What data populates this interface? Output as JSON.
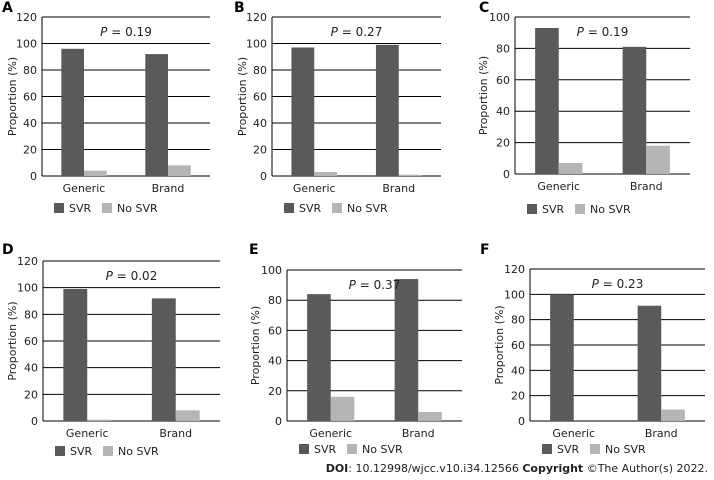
{
  "footer": {
    "doi_label": "DOI",
    "doi_value": ": 10.12998/wjcc.v10.i34.12566",
    "copyright_label": "Copyright",
    "copyright_value": " ©The Author(s) 2022."
  },
  "colors": {
    "svr": "#5a5a5a",
    "no_svr": "#b5b5b5",
    "grid": "#000000",
    "text": "#222222"
  },
  "chart_data": [
    {
      "panel": "A",
      "type": "bar",
      "pvalue": "0.19",
      "categories": [
        "Generic",
        "Brand"
      ],
      "series": [
        {
          "name": "SVR",
          "values": [
            96,
            92
          ]
        },
        {
          "name": "No SVR",
          "values": [
            4,
            8
          ]
        }
      ],
      "ylabel": "Proportion (%)",
      "ylim": [
        0,
        120
      ],
      "yticks": [
        0,
        20,
        40,
        60,
        80,
        100,
        120
      ],
      "legend": "bottom"
    },
    {
      "panel": "B",
      "type": "bar",
      "pvalue": "0.27",
      "categories": [
        "Generic",
        "Brand"
      ],
      "series": [
        {
          "name": "SVR",
          "values": [
            97,
            99
          ]
        },
        {
          "name": "No SVR",
          "values": [
            3,
            1
          ]
        }
      ],
      "ylabel": "Proportion (%)",
      "ylim": [
        0,
        120
      ],
      "yticks": [
        0,
        20,
        40,
        60,
        80,
        100,
        120
      ],
      "legend": "bottom"
    },
    {
      "panel": "C",
      "type": "bar",
      "pvalue": "0.19",
      "categories": [
        "Generic",
        "Brand"
      ],
      "series": [
        {
          "name": "SVR",
          "values": [
            93,
            81
          ]
        },
        {
          "name": "No SVR",
          "values": [
            7,
            18
          ]
        }
      ],
      "ylabel": "Proportion (%)",
      "ylim": [
        0,
        100
      ],
      "yticks": [
        0,
        20,
        40,
        60,
        80,
        100
      ],
      "legend": "bottom"
    },
    {
      "panel": "D",
      "type": "bar",
      "pvalue": "0.02",
      "categories": [
        "Generic",
        "Brand"
      ],
      "series": [
        {
          "name": "SVR",
          "values": [
            99,
            92
          ]
        },
        {
          "name": "No SVR",
          "values": [
            1,
            8
          ]
        }
      ],
      "ylabel": "Proportion (%)",
      "ylim": [
        0,
        120
      ],
      "yticks": [
        0,
        20,
        40,
        60,
        80,
        100,
        120
      ],
      "legend": "bottom"
    },
    {
      "panel": "E",
      "type": "bar",
      "pvalue": "0.37",
      "categories": [
        "Generic",
        "Brand"
      ],
      "series": [
        {
          "name": "SVR",
          "values": [
            84,
            94
          ]
        },
        {
          "name": "No SVR",
          "values": [
            16,
            6
          ]
        }
      ],
      "ylabel": "Proportion (%)",
      "ylim": [
        0,
        100
      ],
      "yticks": [
        0,
        20,
        40,
        60,
        80,
        100
      ],
      "legend": "bottom"
    },
    {
      "panel": "F",
      "type": "bar",
      "pvalue": "0.23",
      "categories": [
        "Generic",
        "Brand"
      ],
      "series": [
        {
          "name": "SVR",
          "values": [
            100,
            91
          ]
        },
        {
          "name": "No SVR",
          "values": [
            0,
            9
          ]
        }
      ],
      "ylabel": "Proportion (%)",
      "ylim": [
        0,
        120
      ],
      "yticks": [
        0,
        20,
        40,
        60,
        80,
        100,
        120
      ],
      "legend": "bottom"
    }
  ]
}
